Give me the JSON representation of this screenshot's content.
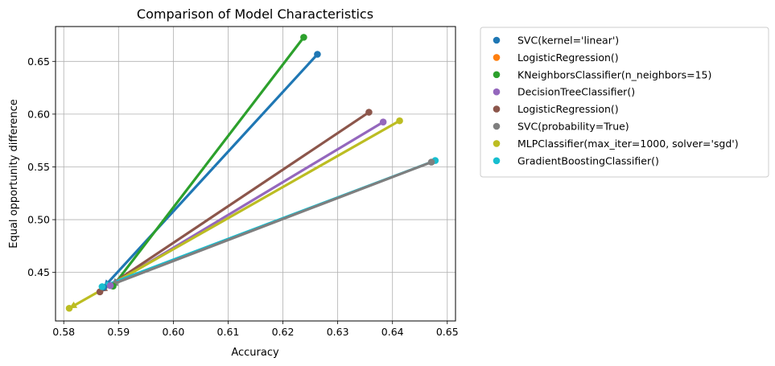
{
  "chart_data": {
    "type": "scatter",
    "title": "Comparison of Model Characteristics",
    "xlabel": "Accuracy",
    "ylabel": "Equal opportunity difference",
    "xlim": [
      0.5785,
      0.6515
    ],
    "ylim": [
      0.404,
      0.683
    ],
    "xticks": [
      0.58,
      0.59,
      0.6,
      0.61,
      0.62,
      0.63,
      0.64,
      0.65
    ],
    "yticks": [
      0.45,
      0.5,
      0.55,
      0.6,
      0.65
    ],
    "grid": true,
    "legend_placement": "outside-top-right",
    "series": [
      {
        "name": "SVC(kernel='linear')",
        "color": "#1f77b4",
        "points": [
          [
            0.5873,
            0.436
          ],
          [
            0.6263,
            0.6567
          ]
        ]
      },
      {
        "name": "LogisticRegression()",
        "color": "#ff7f0e",
        "points": []
      },
      {
        "name": "KNeighborsClassifier(n_neighbors=15)",
        "color": "#2ca02c",
        "points": [
          [
            0.589,
            0.437
          ],
          [
            0.6238,
            0.6728
          ]
        ]
      },
      {
        "name": "DecisionTreeClassifier()",
        "color": "#9467bd",
        "points": [
          [
            0.5885,
            0.4375
          ],
          [
            0.6383,
            0.5925
          ]
        ]
      },
      {
        "name": "LogisticRegression()",
        "color": "#8c564b",
        "points": [
          [
            0.5866,
            0.4316
          ],
          [
            0.6357,
            0.6018
          ]
        ]
      },
      {
        "name": "SVC(probability=True)",
        "color": "#7f7f7f",
        "points": []
      },
      {
        "name": "MLPClassifier(max_iter=1000, solver='sgd')",
        "color": "#bcbd22",
        "points": [
          [
            0.581,
            0.416
          ],
          [
            0.6413,
            0.5937
          ]
        ]
      },
      {
        "name": "GradientBoostingClassifier()",
        "color": "#17becf",
        "points": [
          [
            0.587,
            0.4365
          ],
          [
            0.6478,
            0.556
          ]
        ]
      }
    ],
    "extra_points": [
      {
        "color": "#7f7f7f",
        "point": [
          0.6471,
          0.5545
        ]
      }
    ],
    "arrow_lines": [
      {
        "color": "#1f77b4",
        "from": [
          0.6263,
          0.6567
        ],
        "to": [
          0.5873,
          0.436
        ]
      },
      {
        "color": "#2ca02c",
        "from": [
          0.6238,
          0.6728
        ],
        "to": [
          0.589,
          0.437
        ]
      },
      {
        "color": "#9467bd",
        "from": [
          0.6383,
          0.5925
        ],
        "to": [
          0.5885,
          0.4375
        ]
      },
      {
        "color": "#8c564b",
        "from": [
          0.6357,
          0.6018
        ],
        "to": [
          0.5866,
          0.4316
        ]
      },
      {
        "color": "#bcbd22",
        "from": [
          0.6413,
          0.5937
        ],
        "to": [
          0.581,
          0.416
        ]
      },
      {
        "color": "#17becf",
        "from": [
          0.6478,
          0.556
        ],
        "to": [
          0.587,
          0.4365
        ]
      },
      {
        "color": "#7f7f7f",
        "from": [
          0.6471,
          0.5545
        ],
        "to": [
          0.5885,
          0.438
        ]
      }
    ]
  }
}
